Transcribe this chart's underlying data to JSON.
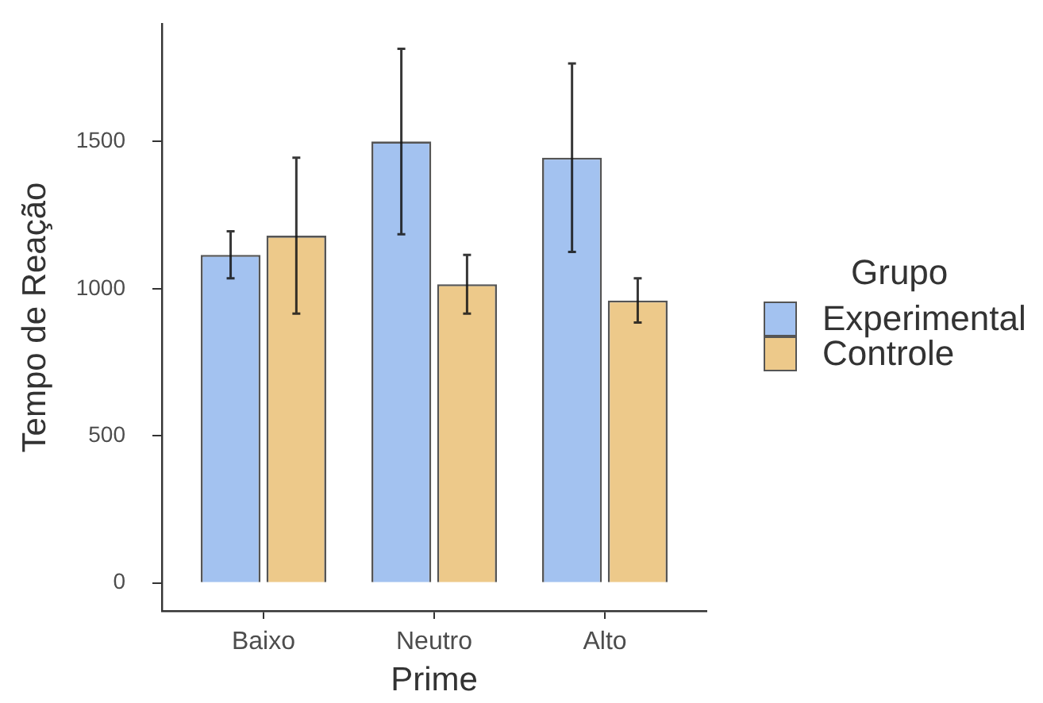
{
  "chart_data": {
    "type": "bar",
    "xlabel": "Prime",
    "ylabel": "Tempo de Reação",
    "legend_title": "Grupo",
    "legend": "right",
    "categories": [
      "Baixo",
      "Neutro",
      "Alto"
    ],
    "series": [
      {
        "name": "Experimental",
        "color": "#a3c2f0",
        "values": [
          1115,
          1500,
          1445
        ],
        "errors": [
          80,
          315,
          320
        ]
      },
      {
        "name": "Controle",
        "color": "#edc98a",
        "values": [
          1180,
          1015,
          960
        ],
        "errors": [
          265,
          100,
          75
        ]
      }
    ],
    "ylim": [
      -95,
      1900
    ],
    "yticks": [
      0,
      500,
      1000,
      1500
    ]
  }
}
